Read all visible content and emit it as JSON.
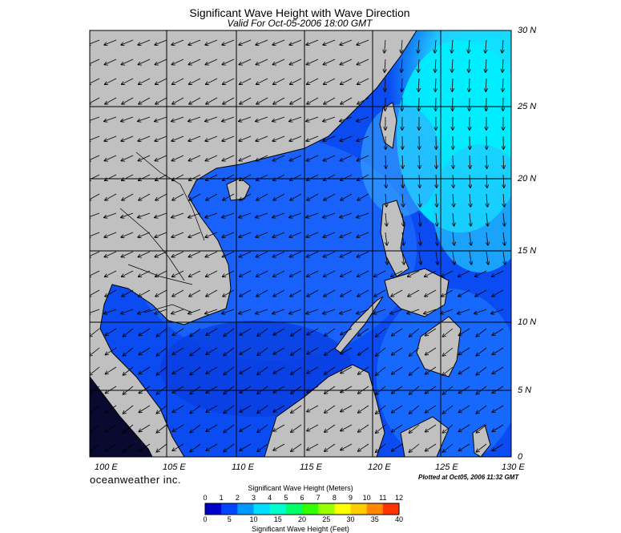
{
  "header": {
    "title": "Significant Wave Height with Wave Direction",
    "subtitle": "Valid For Oct-05-2006 18:00 GMT"
  },
  "map": {
    "latitude_labels": [
      "30 N",
      "25 N",
      "20 N",
      "15 N",
      "10 N",
      "5 N",
      "0"
    ],
    "longitude_labels": [
      "100 E",
      "105 E",
      "110 E",
      "115 E",
      "120 E",
      "125 E",
      "130 E"
    ],
    "land_color": "#c0c0c0",
    "sea_colors": [
      "#0033ee",
      "#0066ff",
      "#1a90ff",
      "#33ccff",
      "#00eeff"
    ]
  },
  "footer": {
    "brand": "oceanweather inc.",
    "plotted": "Plotted at Oct05, 2006 11:32 GMT"
  },
  "colorbar": {
    "meters_title": "Significant Wave Height (Meters)",
    "feet_title": "Significant Wave Height (Feet)",
    "meters_ticks": [
      "0",
      "1",
      "2",
      "3",
      "4",
      "5",
      "6",
      "7",
      "8",
      "9",
      "10",
      "11",
      "12"
    ],
    "feet_ticks": [
      "0",
      "5",
      "10",
      "15",
      "20",
      "25",
      "30",
      "35",
      "40"
    ],
    "colors": [
      "#0000cc",
      "#0044ff",
      "#0099ff",
      "#00ddff",
      "#00ffcc",
      "#00ff66",
      "#33ff00",
      "#99ff00",
      "#ffff00",
      "#ffcc00",
      "#ff8800",
      "#ff3300"
    ]
  }
}
